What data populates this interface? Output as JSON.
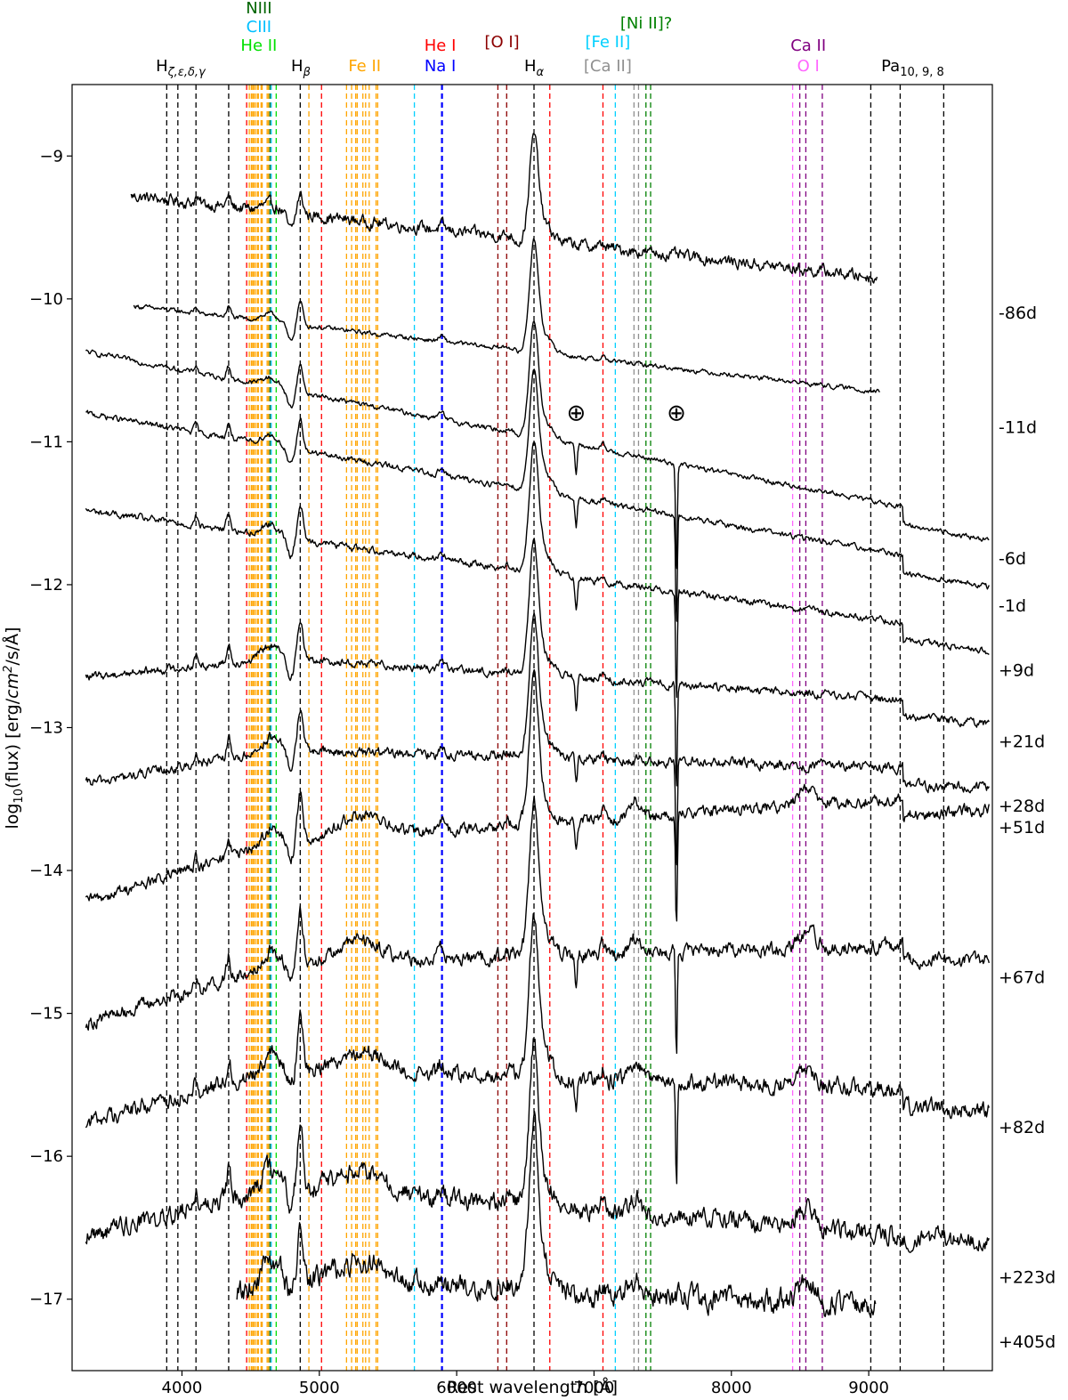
{
  "chart_data": {
    "type": "line",
    "title": "",
    "xlabel": "Rest wavelength [Å]",
    "ylabel": "log10(flux) [erg/cm2/s/Å]",
    "xlim": [
      3200,
      9900
    ],
    "ylim": [
      -17.5,
      -8.5
    ],
    "x_ticks": [
      4000,
      5000,
      6000,
      7000,
      8000,
      9000
    ],
    "x_tick_labels": [
      "4000",
      "5000",
      "6000",
      "7000",
      "8000",
      "9000"
    ],
    "y_ticks": [
      -9,
      -10,
      -11,
      -12,
      -13,
      -14,
      -15,
      -16,
      -17
    ],
    "y_tick_labels": [
      "−9",
      "−10",
      "−11",
      "−12",
      "−13",
      "−14",
      "−15",
      "−16",
      "−17"
    ],
    "grid": false,
    "telluric_marks": [
      {
        "symbol": "⊕",
        "wavelength": 6870,
        "y": -10.85
      },
      {
        "symbol": "⊕",
        "wavelength": 7600,
        "y": -10.85
      }
    ],
    "line_groups": [
      {
        "label": "Hζ,ε,δ,γ",
        "color": "#000000",
        "wavelengths": [
          3889,
          3970,
          4102,
          4340
        ]
      },
      {
        "label": "NIII",
        "color": "#006400",
        "wavelengths": [
          4640
        ]
      },
      {
        "label": "CIII",
        "color": "#00bfff",
        "wavelengths": [
          4650
        ]
      },
      {
        "label": "He II",
        "color": "#00e000",
        "wavelengths": [
          4686
        ]
      },
      {
        "label": "Hβ",
        "color": "#000000",
        "wavelengths": [
          4861
        ]
      },
      {
        "label": "Fe II",
        "color": "#ffa500",
        "wavelengths": [
          4490,
          4505,
          4515,
          4522,
          4534,
          4549,
          4556,
          4576,
          4584,
          4620,
          4629,
          4924,
          5198,
          5235,
          5265,
          5276,
          5317,
          5337,
          5363,
          5413,
          5425
        ]
      },
      {
        "label": "He I",
        "color": "#ff0000",
        "wavelengths": [
          4471,
          5016,
          6678,
          7065
        ]
      },
      {
        "label": "Na I",
        "color": "#0000ff",
        "wavelengths": [
          5890,
          5896
        ]
      },
      {
        "label": "[O I]",
        "color": "#8b0000",
        "wavelengths": [
          6300,
          6364
        ]
      },
      {
        "label": "Hα",
        "color": "#000000",
        "wavelengths": [
          6563
        ]
      },
      {
        "label": "[Fe II]",
        "color": "#00d0ff",
        "wavelengths": [
          5692,
          7155
        ]
      },
      {
        "label": "[Ni II]?",
        "color": "#008000",
        "wavelengths": [
          7378,
          7412
        ]
      },
      {
        "label": "[Ca II]",
        "color": "#909090",
        "wavelengths": [
          7291,
          7324
        ]
      },
      {
        "label": "Ca II",
        "color": "#800080",
        "wavelengths": [
          8498,
          8542,
          8662
        ]
      },
      {
        "label": "O I",
        "color": "#ff66ff",
        "wavelengths": [
          8446
        ]
      },
      {
        "label": "Pa10,9,8",
        "color": "#000000",
        "wavelengths": [
          9015,
          9229,
          9546
        ]
      }
    ],
    "series": [
      {
        "name": "-86d",
        "x_range": [
          3630,
          9060
        ],
        "level_start": -9.28,
        "level_end": -9.85
      },
      {
        "name": "-11d",
        "x_range": [
          3650,
          9080
        ],
        "level_start": -10.05,
        "level_end": -10.65
      },
      {
        "name": "-6d",
        "x_range": [
          3300,
          9880
        ],
        "level_start": -10.37,
        "level_end": -11.57
      },
      {
        "name": "-1d",
        "x_range": [
          3300,
          9880
        ],
        "level_start": -10.8,
        "level_end": -11.9
      },
      {
        "name": "+9d",
        "x_range": [
          3300,
          9880
        ],
        "level_start": -11.48,
        "level_end": -12.35
      },
      {
        "name": "+21d",
        "x_range": [
          3300,
          9880
        ],
        "level_start": -12.42,
        "level_end": -12.85
      },
      {
        "name": "+28d",
        "x_range": [
          3300,
          9880
        ],
        "level_start": -13.12,
        "level_end": -13.3
      },
      {
        "name": "+51d",
        "x_range": [
          3300,
          9880
        ],
        "level_start": -13.9,
        "level_end": -13.45
      },
      {
        "name": "+67d",
        "x_range": [
          3300,
          9880
        ],
        "level_start": -14.7,
        "level_end": -14.5
      },
      {
        "name": "+82d",
        "x_range": [
          3300,
          9880
        ],
        "level_start": -15.35,
        "level_end": -15.55
      },
      {
        "name": "+223d",
        "x_range": [
          3300,
          9880
        ],
        "level_start": -16.1,
        "level_end": -16.6
      },
      {
        "name": "+405d",
        "x_range": [
          4400,
          9050
        ],
        "level_start": -16.85,
        "level_end": -17.05
      }
    ]
  }
}
